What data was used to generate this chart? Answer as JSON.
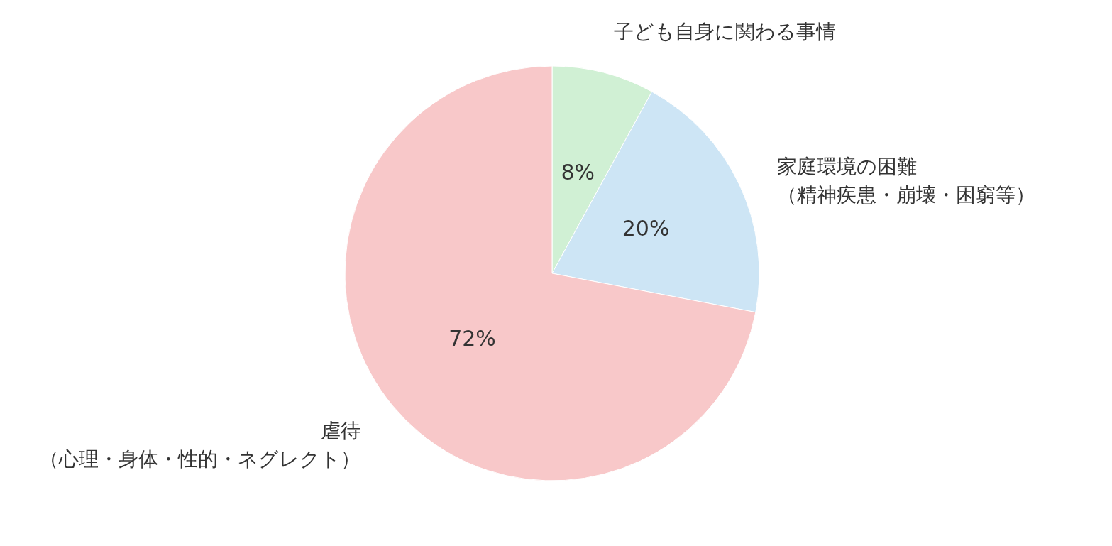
{
  "chart_data": {
    "type": "pie",
    "categories": [
      "子ども自身に関わる事情",
      "家庭環境の困難（精神疾患・崩壊・困窮等）",
      "虐待（心理・身体・性的・ネグレクト）"
    ],
    "values": [
      8,
      20,
      72
    ],
    "colors": [
      "#d0f0d4",
      "#cde5f5",
      "#f8c8c9"
    ],
    "value_labels": [
      "8%",
      "20%",
      "72%"
    ]
  }
}
